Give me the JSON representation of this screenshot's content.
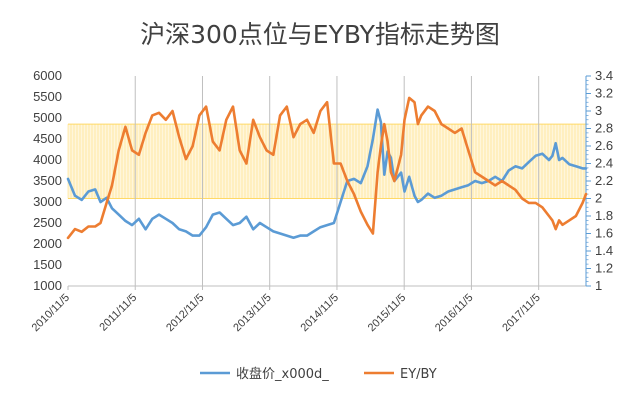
{
  "chart_data": {
    "type": "line",
    "title": "沪深300点位与EYBY指标走势图",
    "x_tick_labels": [
      "2010/11/5",
      "2011/11/5",
      "2012/11/5",
      "2013/11/5",
      "2014/11/5",
      "2015/11/5",
      "2016/11/5",
      "2017/11/5"
    ],
    "x_range_years": [
      2010.846,
      2018.55
    ],
    "y_left": {
      "ticks": [
        "6000",
        "5500",
        "5000",
        "4500",
        "4000",
        "3500",
        "3000",
        "2500",
        "2000",
        "1500",
        "1000"
      ],
      "ylim": [
        1000,
        6000
      ]
    },
    "y_right": {
      "ticks": [
        "3.4",
        "3.2",
        "3",
        "2.8",
        "2.6",
        "2.4",
        "2.2",
        "2",
        "1.8",
        "1.6",
        "1.4",
        "1.2",
        "1"
      ],
      "ylim": [
        1,
        3.4
      ]
    },
    "band_right_axis": [
      2.0,
      2.85
    ],
    "colors": {
      "series1": "#5b9bd5",
      "series2": "#ed7d31",
      "band": "#ffe699",
      "band_edge": "#ffd966",
      "axis": "#bfbfbf",
      "right_axis": "#5b9bd5"
    },
    "series": [
      {
        "name": "收盘价_x000d_",
        "axis": "left",
        "x": [
          2010.846,
          2010.95,
          2011.05,
          2011.15,
          2011.25,
          2011.33,
          2011.42,
          2011.5,
          2011.6,
          2011.7,
          2011.8,
          2011.9,
          2012.0,
          2012.1,
          2012.2,
          2012.3,
          2012.4,
          2012.5,
          2012.6,
          2012.7,
          2012.8,
          2012.9,
          2013.0,
          2013.1,
          2013.2,
          2013.3,
          2013.4,
          2013.5,
          2013.6,
          2013.7,
          2013.8,
          2013.9,
          2014.0,
          2014.1,
          2014.2,
          2014.3,
          2014.4,
          2014.5,
          2014.6,
          2014.7,
          2014.8,
          2014.9,
          2015.0,
          2015.1,
          2015.2,
          2015.3,
          2015.38,
          2015.45,
          2015.5,
          2015.55,
          2015.6,
          2015.65,
          2015.7,
          2015.8,
          2015.85,
          2015.92,
          2016.0,
          2016.05,
          2016.1,
          2016.2,
          2016.3,
          2016.4,
          2016.5,
          2016.6,
          2016.7,
          2016.8,
          2016.9,
          2017.0,
          2017.1,
          2017.2,
          2017.3,
          2017.4,
          2017.5,
          2017.6,
          2017.7,
          2017.8,
          2017.9,
          2018.0,
          2018.05,
          2018.1,
          2018.15,
          2018.2,
          2018.3,
          2018.4,
          2018.5,
          2018.55
        ],
        "values": [
          3550,
          3150,
          3050,
          3250,
          3300,
          3000,
          3100,
          2850,
          2700,
          2550,
          2450,
          2600,
          2350,
          2600,
          2700,
          2600,
          2500,
          2350,
          2300,
          2200,
          2200,
          2400,
          2700,
          2750,
          2600,
          2450,
          2500,
          2650,
          2350,
          2500,
          2400,
          2300,
          2250,
          2200,
          2150,
          2200,
          2200,
          2300,
          2400,
          2450,
          2500,
          3000,
          3500,
          3550,
          3450,
          3850,
          4500,
          5200,
          4900,
          3650,
          4200,
          4050,
          3500,
          3700,
          3250,
          3600,
          3150,
          3000,
          3050,
          3200,
          3100,
          3150,
          3250,
          3300,
          3350,
          3400,
          3500,
          3450,
          3500,
          3600,
          3500,
          3750,
          3850,
          3800,
          3950,
          4100,
          4150,
          4000,
          4100,
          4400,
          4000,
          4050,
          3900,
          3850,
          3800,
          3800
        ]
      },
      {
        "name": "EY/BY",
        "axis": "right",
        "x": [
          2010.846,
          2010.95,
          2011.05,
          2011.15,
          2011.25,
          2011.33,
          2011.42,
          2011.5,
          2011.6,
          2011.7,
          2011.8,
          2011.9,
          2012.0,
          2012.1,
          2012.2,
          2012.3,
          2012.4,
          2012.5,
          2012.6,
          2012.7,
          2012.8,
          2012.9,
          2013.0,
          2013.1,
          2013.2,
          2013.3,
          2013.4,
          2013.5,
          2013.6,
          2013.7,
          2013.8,
          2013.9,
          2014.0,
          2014.1,
          2014.2,
          2014.3,
          2014.4,
          2014.5,
          2014.6,
          2014.7,
          2014.8,
          2014.9,
          2015.0,
          2015.1,
          2015.2,
          2015.3,
          2015.38,
          2015.45,
          2015.5,
          2015.55,
          2015.6,
          2015.65,
          2015.7,
          2015.8,
          2015.85,
          2015.92,
          2016.0,
          2016.05,
          2016.1,
          2016.2,
          2016.3,
          2016.4,
          2016.5,
          2016.6,
          2016.7,
          2016.8,
          2016.9,
          2017.0,
          2017.1,
          2017.2,
          2017.3,
          2017.4,
          2017.5,
          2017.6,
          2017.7,
          2017.8,
          2017.9,
          2018.0,
          2018.05,
          2018.1,
          2018.15,
          2018.2,
          2018.3,
          2018.4,
          2018.5,
          2018.55
        ],
        "values": [
          1.55,
          1.65,
          1.62,
          1.68,
          1.68,
          1.72,
          1.95,
          2.15,
          2.55,
          2.82,
          2.55,
          2.5,
          2.75,
          2.95,
          2.98,
          2.9,
          3.0,
          2.7,
          2.45,
          2.6,
          2.95,
          3.05,
          2.65,
          2.55,
          2.9,
          3.05,
          2.55,
          2.4,
          2.9,
          2.7,
          2.55,
          2.5,
          2.95,
          3.05,
          2.7,
          2.85,
          2.9,
          2.75,
          3.0,
          3.1,
          2.4,
          2.4,
          2.2,
          2.05,
          1.85,
          1.7,
          1.6,
          2.3,
          2.6,
          2.85,
          2.65,
          2.3,
          2.2,
          2.5,
          2.9,
          3.15,
          3.1,
          2.85,
          2.95,
          3.05,
          3.0,
          2.85,
          2.8,
          2.75,
          2.8,
          2.55,
          2.3,
          2.25,
          2.2,
          2.15,
          2.2,
          2.15,
          2.1,
          2.0,
          1.95,
          1.95,
          1.9,
          1.8,
          1.75,
          1.65,
          1.75,
          1.7,
          1.75,
          1.8,
          1.95,
          2.05
        ]
      }
    ]
  }
}
